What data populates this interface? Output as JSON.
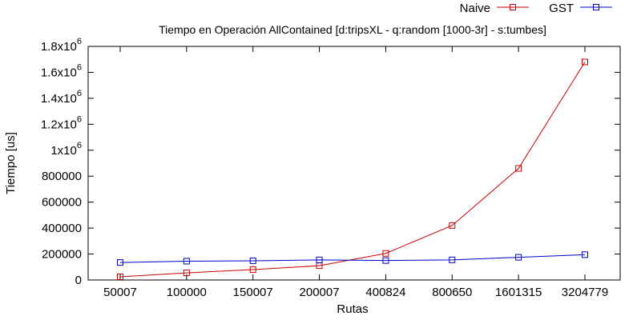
{
  "chart_data": {
    "type": "line",
    "title": "Tiempo en Operación AllContained [d:tripsXL - q:random [1000-3r] - s:tumbes]",
    "xlabel": "Rutas",
    "ylabel": "Tiempo [us]",
    "categories": [
      "50007",
      "100000",
      "150007",
      "200007",
      "400824",
      "800650",
      "1601315",
      "3204779"
    ],
    "ylim": [
      0,
      1800000
    ],
    "y_ticks": [
      {
        "value": 0,
        "base": "0",
        "exp": ""
      },
      {
        "value": 200000,
        "base": "200000",
        "exp": ""
      },
      {
        "value": 400000,
        "base": "400000",
        "exp": ""
      },
      {
        "value": 600000,
        "base": "600000",
        "exp": ""
      },
      {
        "value": 800000,
        "base": "800000",
        "exp": ""
      },
      {
        "value": 1000000,
        "base": "1x10",
        "exp": "6"
      },
      {
        "value": 1200000,
        "base": "1.2x10",
        "exp": "6"
      },
      {
        "value": 1400000,
        "base": "1.4x10",
        "exp": "6"
      },
      {
        "value": 1600000,
        "base": "1.6x10",
        "exp": "6"
      },
      {
        "value": 1800000,
        "base": "1.8x10",
        "exp": "6"
      }
    ],
    "grid": false,
    "legend_position": "top-right",
    "series": [
      {
        "name": "Naive",
        "color": "#cc0000",
        "values": [
          25000,
          55000,
          80000,
          110000,
          205000,
          420000,
          860000,
          1680000
        ]
      },
      {
        "name": "GST",
        "color": "#0000cc",
        "values": [
          135000,
          145000,
          148000,
          155000,
          150000,
          155000,
          175000,
          195000
        ]
      }
    ]
  }
}
